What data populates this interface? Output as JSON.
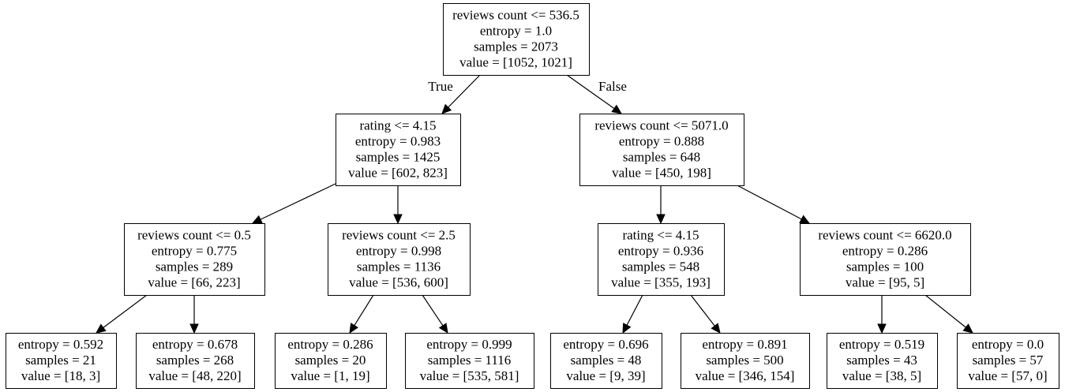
{
  "tree": {
    "nodes": {
      "n0": {
        "lines": [
          "reviews count <= 536.5",
          "entropy = 1.0",
          "samples = 2073",
          "value = [1052, 1021]"
        ]
      },
      "n1": {
        "lines": [
          "rating <= 4.15",
          "entropy = 0.983",
          "samples = 1425",
          "value = [602, 823]"
        ]
      },
      "n2": {
        "lines": [
          "reviews count <= 5071.0",
          "entropy = 0.888",
          "samples = 648",
          "value = [450, 198]"
        ]
      },
      "n3": {
        "lines": [
          "reviews count <= 0.5",
          "entropy = 0.775",
          "samples = 289",
          "value = [66, 223]"
        ]
      },
      "n4": {
        "lines": [
          "reviews count <= 2.5",
          "entropy = 0.998",
          "samples = 1136",
          "value = [536, 600]"
        ]
      },
      "n5": {
        "lines": [
          "rating <= 4.15",
          "entropy = 0.936",
          "samples = 548",
          "value = [355, 193]"
        ]
      },
      "n6": {
        "lines": [
          "reviews count <= 6620.0",
          "entropy = 0.286",
          "samples = 100",
          "value = [95, 5]"
        ]
      },
      "n7": {
        "lines": [
          "entropy = 0.592",
          "samples = 21",
          "value = [18, 3]"
        ]
      },
      "n8": {
        "lines": [
          "entropy = 0.678",
          "samples = 268",
          "value = [48, 220]"
        ]
      },
      "n9": {
        "lines": [
          "entropy = 0.286",
          "samples = 20",
          "value = [1, 19]"
        ]
      },
      "n10": {
        "lines": [
          "entropy = 0.999",
          "samples = 1116",
          "value = [535, 581]"
        ]
      },
      "n11": {
        "lines": [
          "entropy = 0.696",
          "samples = 48",
          "value = [9, 39]"
        ]
      },
      "n12": {
        "lines": [
          "entropy = 0.891",
          "samples = 500",
          "value = [346, 154]"
        ]
      },
      "n13": {
        "lines": [
          "entropy = 0.519",
          "samples = 43",
          "value = [38, 5]"
        ]
      },
      "n14": {
        "lines": [
          "entropy = 0.0",
          "samples = 57",
          "value = [57, 0]"
        ]
      }
    },
    "edges": [
      {
        "from": "n0",
        "to": "n1",
        "label": "True"
      },
      {
        "from": "n0",
        "to": "n2",
        "label": "False"
      },
      {
        "from": "n1",
        "to": "n3"
      },
      {
        "from": "n1",
        "to": "n4"
      },
      {
        "from": "n2",
        "to": "n5"
      },
      {
        "from": "n2",
        "to": "n6"
      },
      {
        "from": "n3",
        "to": "n7"
      },
      {
        "from": "n3",
        "to": "n8"
      },
      {
        "from": "n4",
        "to": "n9"
      },
      {
        "from": "n4",
        "to": "n10"
      },
      {
        "from": "n5",
        "to": "n11"
      },
      {
        "from": "n5",
        "to": "n12"
      },
      {
        "from": "n6",
        "to": "n13"
      },
      {
        "from": "n6",
        "to": "n14"
      }
    ]
  }
}
